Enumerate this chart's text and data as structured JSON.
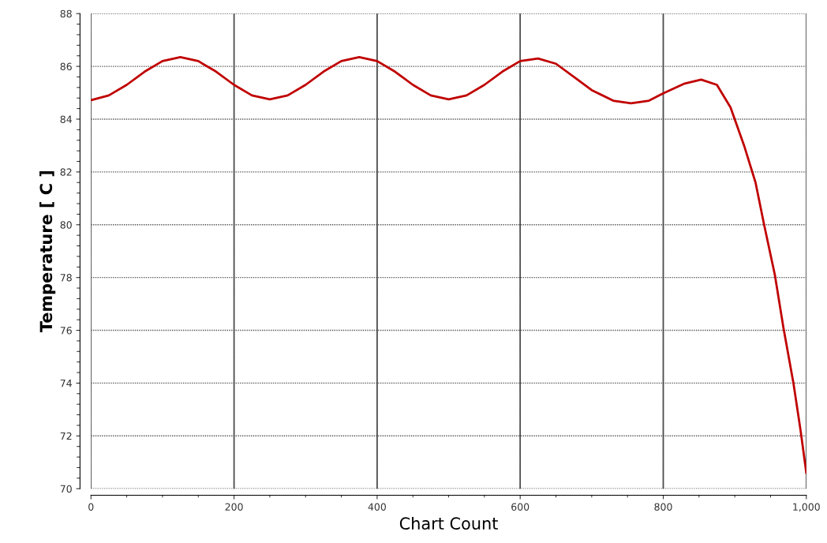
{
  "chart_data": {
    "type": "line",
    "xlabel": "Chart Count",
    "ylabel": "Temperature [ C ]",
    "x": [
      0,
      25,
      50,
      75,
      100,
      125,
      150,
      175,
      200,
      225,
      250,
      275,
      300,
      325,
      350,
      375,
      400,
      425,
      450,
      475,
      500,
      525,
      550,
      575,
      600,
      625,
      650,
      675,
      700,
      730,
      755,
      780,
      800,
      830,
      853,
      875,
      894,
      913,
      929,
      941,
      956,
      968,
      982,
      992,
      1000
    ],
    "series": [
      {
        "color": "#c00000",
        "values": [
          84.72,
          84.9,
          85.3,
          85.8,
          86.2,
          86.35,
          86.2,
          85.8,
          85.3,
          84.9,
          84.75,
          84.9,
          85.3,
          85.8,
          86.2,
          86.35,
          86.2,
          85.8,
          85.3,
          84.9,
          84.75,
          84.9,
          85.3,
          85.8,
          86.2,
          86.3,
          86.1,
          85.6,
          85.1,
          84.7,
          84.6,
          84.7,
          84.98,
          85.35,
          85.5,
          85.3,
          84.45,
          83.0,
          81.6,
          80.0,
          78.1,
          76.1,
          74.0,
          72.2,
          70.6
        ]
      }
    ],
    "xlim": [
      0,
      1000
    ],
    "xticks": [
      0,
      200,
      400,
      600,
      800,
      {
        "value": 1000,
        "label": "1,000"
      }
    ],
    "ylim": [
      70,
      88
    ],
    "yticks": [
      70,
      72,
      74,
      76,
      78,
      80,
      82,
      84,
      86,
      88
    ],
    "grid": true,
    "marker": "none",
    "line_style": "solid"
  }
}
